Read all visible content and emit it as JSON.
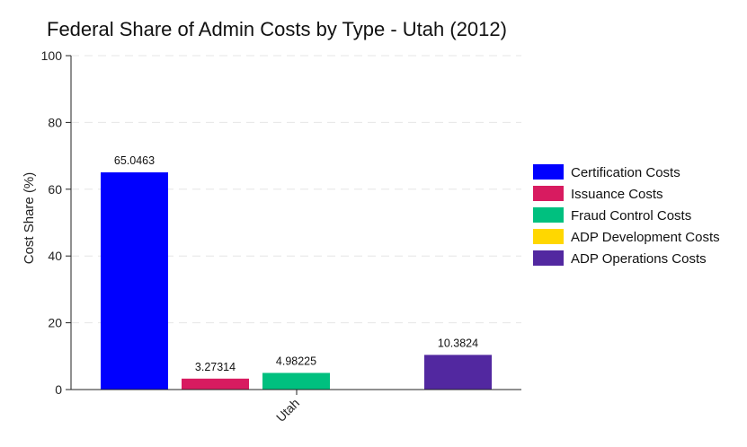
{
  "chart_data": {
    "type": "bar",
    "title": "Federal Share of Admin Costs by Type - Utah (2012)",
    "xlabel": "",
    "ylabel": "Cost Share (%)",
    "categories": [
      "Utah"
    ],
    "ylim": [
      0,
      100
    ],
    "yticks": [
      0,
      20,
      40,
      60,
      80,
      100
    ],
    "grid": true,
    "legend_position": "right",
    "series": [
      {
        "name": "Certification Costs",
        "values": [
          65.0463
        ],
        "label": "65.0463",
        "color": "#0000ff"
      },
      {
        "name": "Issuance Costs",
        "values": [
          3.27314
        ],
        "label": "3.27314",
        "color": "#d81b60"
      },
      {
        "name": "Fraud Control Costs",
        "values": [
          4.98225
        ],
        "label": "4.98225",
        "color": "#00c07f"
      },
      {
        "name": "ADP Development Costs",
        "values": [
          0
        ],
        "label": "",
        "color": "#ffd700"
      },
      {
        "name": "ADP Operations Costs",
        "values": [
          10.3824
        ],
        "label": "10.3824",
        "color": "#5228a0"
      }
    ]
  }
}
